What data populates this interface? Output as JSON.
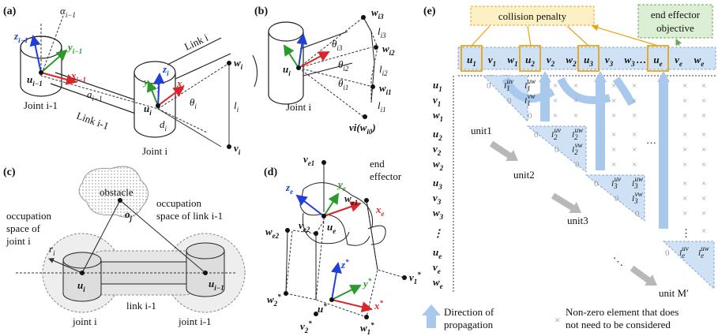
{
  "panels": {
    "a": {
      "label": "(a)",
      "alpha": "α",
      "alpha_sub": "i−1",
      "z": "z",
      "z_sub": "i−1",
      "y": "y",
      "y_sub": "i−1",
      "u": "u",
      "u_sub": "i−1",
      "x": "x",
      "x_sub": "i−1",
      "a_sym": "a",
      "a_sub": "i−1",
      "joint_prev": "Joint i-1",
      "link_prev": "Link i-1",
      "link_i": "Link i",
      "joint_i": "Joint i",
      "zi": "z",
      "zi_sub": "i",
      "yi": "y",
      "yi_sub": "i",
      "xi": "x",
      "xi_sub": "i",
      "ui": "u",
      "ui_sub": "i",
      "di": "d",
      "di_sub": "i",
      "theta": "θ",
      "theta_sub": "i",
      "wi": "w",
      "wi_sub": "i",
      "li": "l",
      "li_sub": "i",
      "vi": "v",
      "vi_sub": "i"
    },
    "b": {
      "label": "(b)",
      "ui": "u",
      "ui_sub": "i",
      "joint": "Joint i",
      "w3": "w",
      "w3_sub": "i3",
      "l3": "l",
      "l3_sub": "i3",
      "th3": "θ",
      "th3_sub": "i3",
      "w2": "w",
      "w2_sub": "i2",
      "th2": "θ",
      "th2_sub": "i2",
      "l2": "l",
      "l2_sub": "i2",
      "th1": "θ",
      "th1_sub": "i1",
      "w1": "w",
      "w1_sub": "i1",
      "l1": "l",
      "l1_sub": "i1",
      "v": "v",
      "v_text": "i(w",
      "v_sub2": "i0",
      "v_close": ")"
    },
    "c": {
      "label": "(c)",
      "obstacle": "obstacle",
      "occ_joint_1": "occupation",
      "occ_joint_2": "space of",
      "occ_joint_3": "joint i",
      "occ_link_1": "occupation",
      "occ_link_2": "space of link i-1",
      "oj": "o",
      "oj_sub": "j",
      "ri": "r",
      "ri_sub": "i",
      "ui": "u",
      "ui_sub": "i",
      "uprev": "u",
      "uprev_sub": "i−1",
      "link": "link i-1",
      "joint_i": "joint i",
      "joint_prev": "joint i-1"
    },
    "d": {
      "label": "(d)",
      "ve1": "v",
      "ve1_sub": "e1",
      "end1": "end",
      "end2": "effector",
      "ze": "z",
      "ze_sub": "e",
      "ye": "y",
      "ye_sub": "e",
      "we1": "w",
      "we1_sub": "e1",
      "xe": "x",
      "xe_sub": "e",
      "we2": "w",
      "we2_sub": "e2",
      "ve2": "v",
      "ve2_sub": "e2",
      "ue": "u",
      "ue_sub": "e",
      "zs": "z",
      "zs_sup": "*",
      "ys": "y",
      "ys_sup": "*",
      "v1s": "v",
      "v1s_sub": "1",
      "v1s_sup": "*",
      "xs": "x",
      "xs_sup": "*",
      "w2s": "w",
      "w2s_sub": "2",
      "w2s_sup": "*",
      "us": "u",
      "us_sup": "*",
      "v2s": "v",
      "v2s_sub": "2",
      "v2s_sup": "*",
      "w1s": "w",
      "w1s_sub": "1",
      "w1s_sup": "*"
    },
    "e": {
      "label": "(e)",
      "collision": "collision penalty",
      "objective_1": "end effector",
      "objective_2": "objective",
      "header": [
        "u",
        "v",
        "w",
        "u",
        "v",
        "w",
        "u",
        "v",
        "w",
        "…",
        "u",
        "v",
        "w"
      ],
      "header_subs": [
        "1",
        "1",
        "1",
        "2",
        "2",
        "2",
        "3",
        "3",
        "3",
        "",
        "e",
        "e",
        "e"
      ],
      "rows": [
        "u",
        "v",
        "w",
        "u",
        "v",
        "w",
        "u",
        "v",
        "w",
        "⋮",
        "u",
        "v",
        "w"
      ],
      "row_subs": [
        "1",
        "1",
        "1",
        "2",
        "2",
        "2",
        "3",
        "3",
        "3",
        "",
        "e",
        "e",
        "e"
      ],
      "units": [
        "unit1",
        "unit2",
        "unit3",
        "unit M′"
      ],
      "zero": "0",
      "cross": "×",
      "dots_h": "…",
      "dots_v": "⋮",
      "dots_d": "⋱",
      "l_uv": "l",
      "l_uw": "l",
      "l_vw": "l",
      "sup_uv": "uv",
      "sup_uw": "uw",
      "sup_vw": "vw",
      "legend_arrow": "Direction of",
      "legend_arrow2": "propagation",
      "legend_cross_1": "Non-zero element that does",
      "legend_cross_2": "not need to be considered",
      "colors": {
        "penalty_fill": "#fdf0c4",
        "penalty_stroke": "#e8a317",
        "objective_fill": "#dcefd4",
        "objective_stroke": "#6aaa55",
        "band": "#cfe2f5",
        "arrow": "#a8c8ec"
      }
    }
  }
}
